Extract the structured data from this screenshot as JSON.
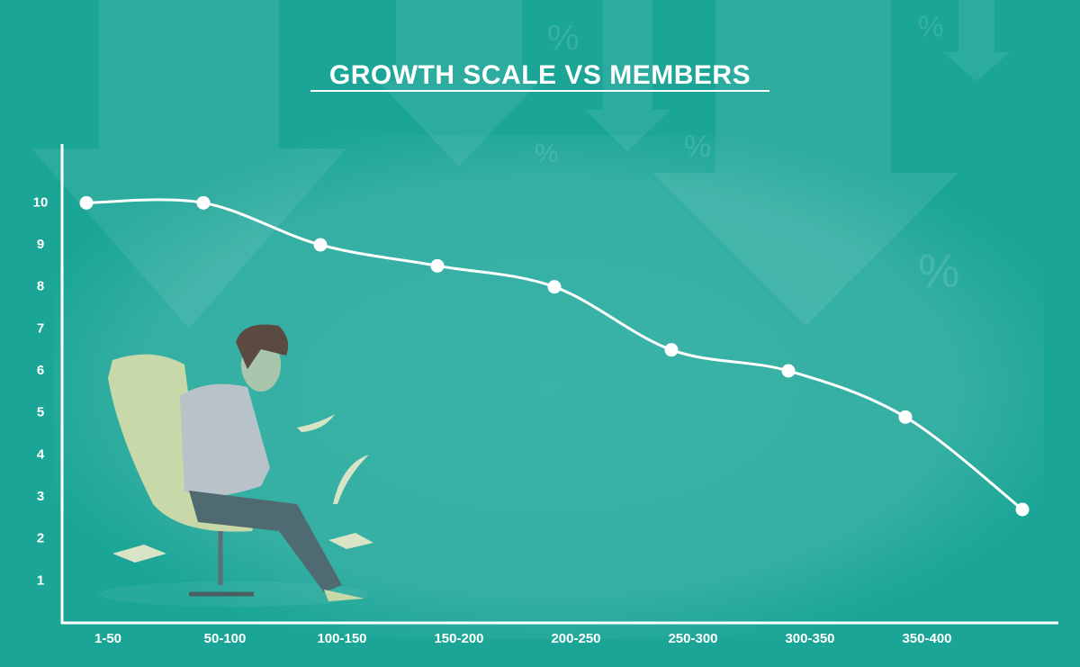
{
  "chart_data": {
    "type": "line",
    "title": "GROWTH SCALE VS MEMBERS",
    "categories": [
      "1-50",
      "50-100",
      "100-150",
      "150-200",
      "200-250",
      "250-300",
      "300-350",
      "350-400",
      null
    ],
    "values": [
      10,
      10,
      9,
      8.5,
      8,
      6.5,
      6,
      4.9,
      2.7
    ],
    "color": "#ffffff",
    "ylim": [
      0,
      11.4
    ],
    "yticks": [
      1,
      2,
      3,
      4,
      5,
      6,
      7,
      8,
      9,
      10
    ],
    "grid": false
  }
}
